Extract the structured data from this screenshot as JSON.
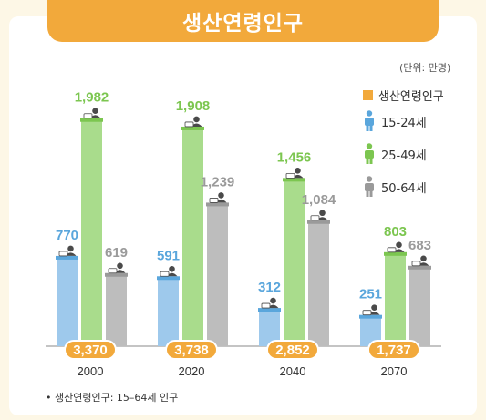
{
  "title": "생산연령인구",
  "unit_note": "(단위: 만명)",
  "footnote": "• 생산연령인구: 15–64세 인구",
  "colors": {
    "accent": "#f2a93b",
    "blue": "#5aa6dc",
    "blue_bar": "#9ec9ec",
    "green": "#7cc650",
    "green_bar": "#a9dc8c",
    "gray": "#9a9a9a",
    "gray_bar": "#bdbdbd",
    "total_badge": "#f2a93b"
  },
  "legend": [
    {
      "label": "생산연령인구",
      "marker": "square",
      "color": "#f2a93b"
    },
    {
      "label": "15-24세",
      "marker": "person-icon",
      "color": "#5aa6dc"
    },
    {
      "label": "25-49세",
      "marker": "person-icon",
      "color": "#7cc650"
    },
    {
      "label": "50-64세",
      "marker": "person-icon",
      "color": "#9a9a9a"
    }
  ],
  "chart_data": {
    "type": "bar",
    "categories": [
      "2000",
      "2020",
      "2040",
      "2070"
    ],
    "series": [
      {
        "name": "15-24세",
        "values": [
          770,
          591,
          312,
          251
        ]
      },
      {
        "name": "25-49세",
        "values": [
          1982,
          1908,
          1456,
          803
        ]
      },
      {
        "name": "50-64세",
        "values": [
          619,
          1239,
          1084,
          683
        ]
      }
    ],
    "totals": {
      "name": "생산연령인구",
      "values": [
        3370,
        3738,
        2852,
        1737
      ]
    },
    "data_labels": {
      "15-24세": [
        "770",
        "591",
        "312",
        "251"
      ],
      "25-49세": [
        "1,982",
        "1,908",
        "1,456",
        "803"
      ],
      "50-64세": [
        "619",
        "1,239",
        "1,084",
        "683"
      ],
      "생산연령인구": [
        "3,370",
        "3,738",
        "2,852",
        "1,737"
      ]
    },
    "ylim": [
      0,
      2100
    ],
    "grid": false,
    "legend_position": "right"
  }
}
